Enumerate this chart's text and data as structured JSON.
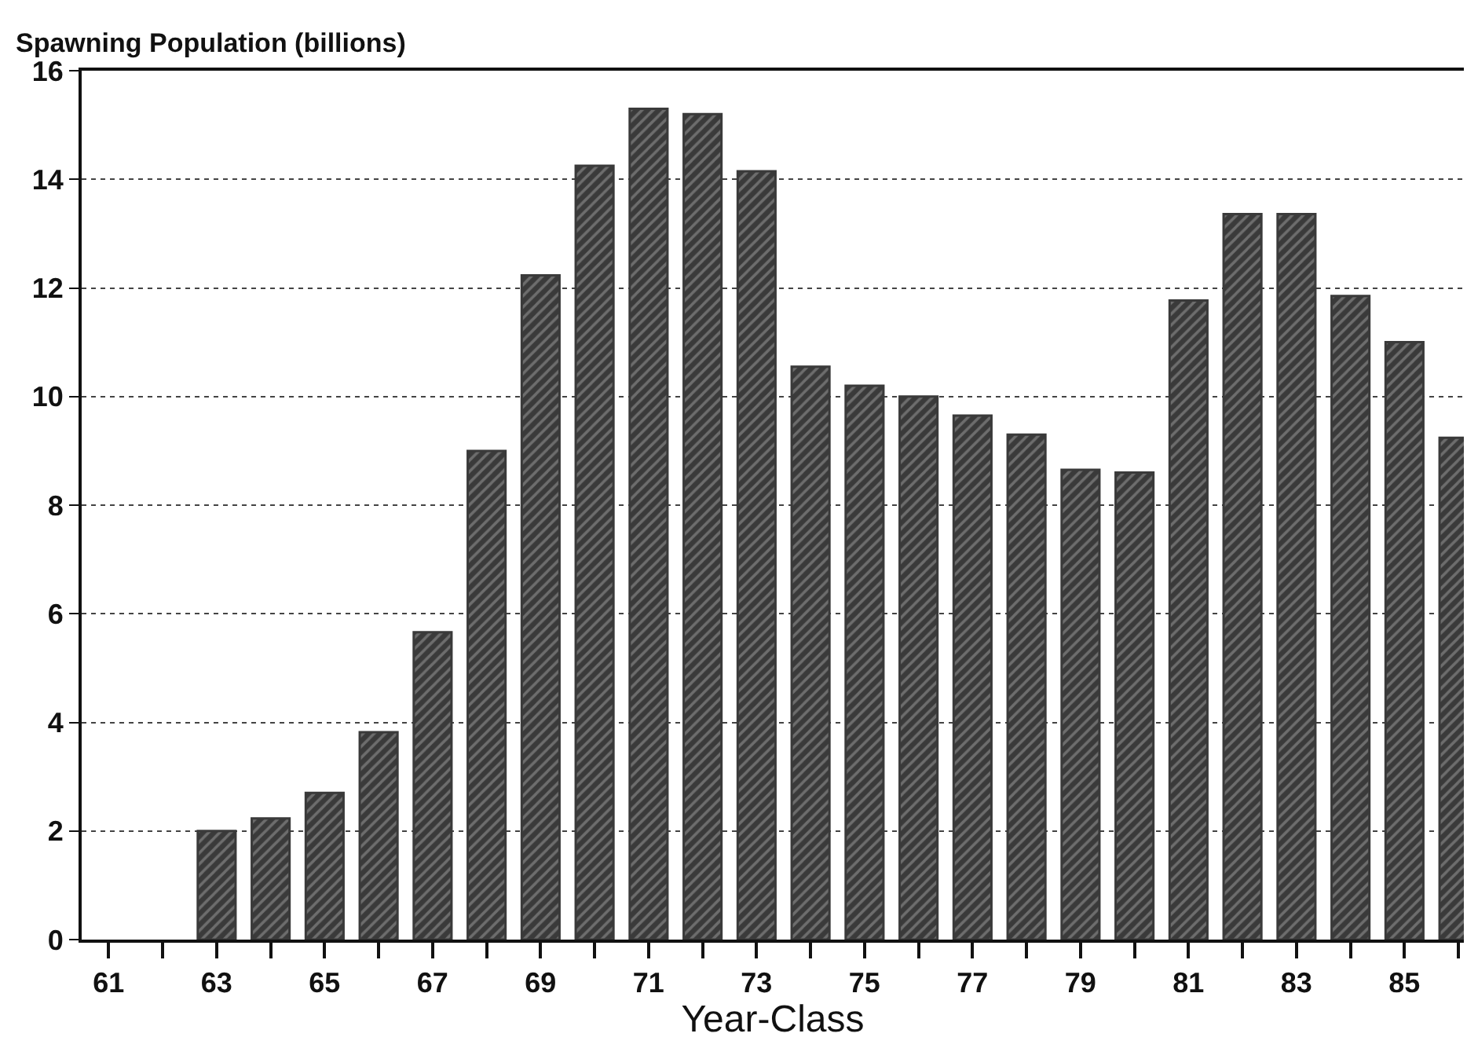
{
  "chart_data": {
    "type": "bar",
    "ylabel": "Spawning Population (billions)",
    "xlabel": "Year-Class",
    "x": [
      63,
      64,
      65,
      66,
      67,
      68,
      69,
      70,
      71,
      72,
      73,
      74,
      75,
      76,
      77,
      78,
      79,
      80,
      81,
      82,
      83,
      84,
      85,
      86
    ],
    "values": [
      2.0,
      2.23,
      2.7,
      3.82,
      5.66,
      9.0,
      12.23,
      14.25,
      15.3,
      15.2,
      14.15,
      10.55,
      10.2,
      10.0,
      9.65,
      9.3,
      8.65,
      8.6,
      11.77,
      13.36,
      13.36,
      11.85,
      11.0,
      9.24
    ],
    "color": "#3a3a3a",
    "xlim": [
      60.5,
      86.1
    ],
    "xticks": [
      61,
      {
        "value": 62,
        "label": null
      },
      63,
      {
        "value": 64,
        "label": null
      },
      65,
      {
        "value": 66,
        "label": null
      },
      67,
      {
        "value": 68,
        "label": null
      },
      69,
      {
        "value": 70,
        "label": null
      },
      71,
      {
        "value": 72,
        "label": null
      },
      73,
      {
        "value": 74,
        "label": null
      },
      75,
      {
        "value": 76,
        "label": null
      },
      77,
      {
        "value": 78,
        "label": null
      },
      79,
      {
        "value": 80,
        "label": null
      },
      81,
      {
        "value": 82,
        "label": null
      },
      83,
      {
        "value": 84,
        "label": null
      },
      85,
      {
        "value": 86,
        "label": null
      }
    ],
    "ylim": [
      0,
      16
    ],
    "yticks": [
      0,
      2,
      4,
      6,
      8,
      10,
      12,
      14,
      16
    ],
    "grid": "y"
  }
}
